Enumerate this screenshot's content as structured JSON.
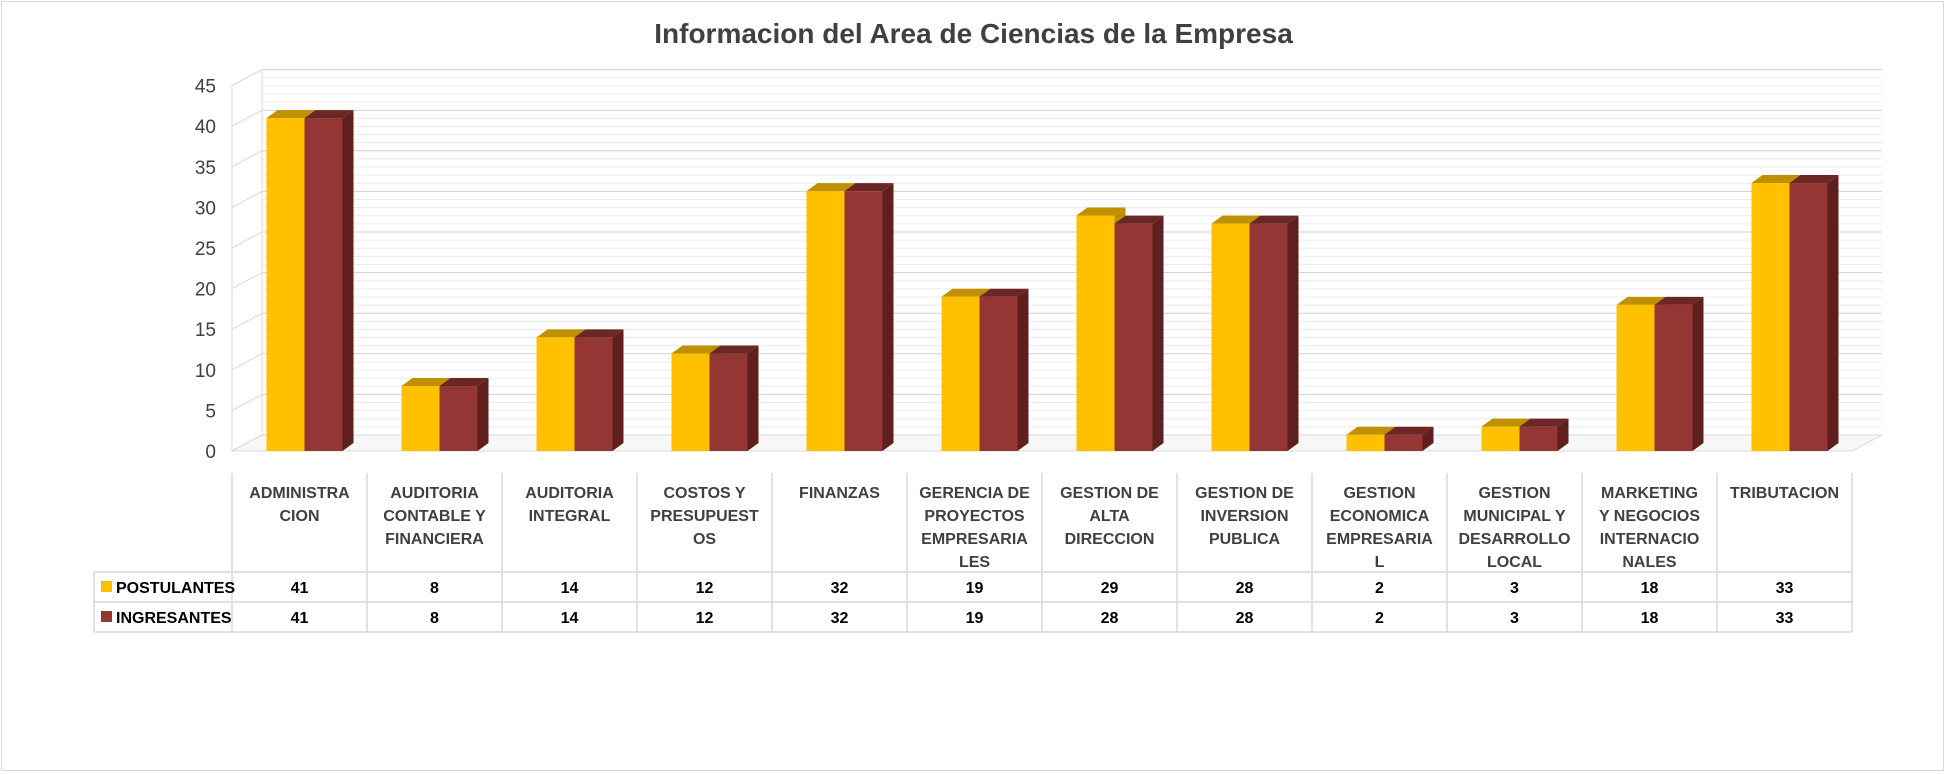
{
  "chart_data": {
    "type": "bar",
    "title": "Informacion del Area de Ciencias de la Empresa",
    "xlabel": "",
    "ylabel": "",
    "ylim": [
      0,
      45
    ],
    "yticks": [
      0,
      5,
      10,
      15,
      20,
      25,
      30,
      35,
      40,
      45
    ],
    "grid": true,
    "legend": "data-table-left",
    "categories": [
      [
        "ADMINISTRA",
        "CION"
      ],
      [
        "AUDITORIA",
        "CONTABLE Y",
        "FINANCIERA"
      ],
      [
        "AUDITORIA",
        "INTEGRAL"
      ],
      [
        "COSTOS Y",
        "PRESUPUEST",
        "OS"
      ],
      [
        "FINANZAS"
      ],
      [
        "GERENCIA DE",
        "PROYECTOS",
        "EMPRESARIA",
        "LES"
      ],
      [
        "GESTION DE",
        "ALTA",
        "DIRECCION"
      ],
      [
        "GESTION DE",
        "INVERSION",
        "PUBLICA"
      ],
      [
        "GESTION",
        "ECONOMICA",
        "EMPRESARIA",
        "L"
      ],
      [
        "GESTION",
        "MUNICIPAL Y",
        "DESARROLLO",
        "LOCAL"
      ],
      [
        "MARKETING",
        "Y NEGOCIOS",
        "INTERNACIO",
        "NALES"
      ],
      [
        "TRIBUTACION"
      ]
    ],
    "series": [
      {
        "name": "POSTULANTES",
        "color": "#FFC000",
        "top_color": "#BF9000",
        "side_color": "#BF9000",
        "values": [
          41,
          8,
          14,
          12,
          32,
          19,
          29,
          28,
          2,
          3,
          18,
          33
        ]
      },
      {
        "name": "INGRESANTES",
        "color": "#943634",
        "top_color": "#6B2725",
        "side_color": "#5E1F1D",
        "values": [
          41,
          8,
          14,
          12,
          32,
          19,
          28,
          28,
          2,
          3,
          18,
          33
        ]
      }
    ]
  }
}
